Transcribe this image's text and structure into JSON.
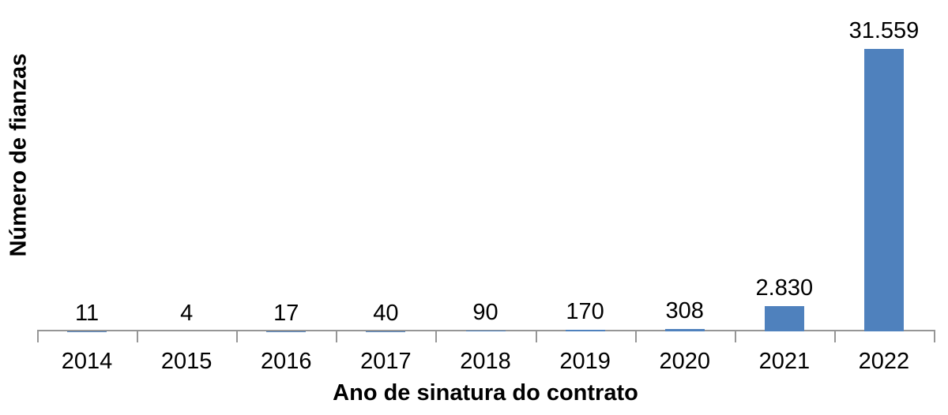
{
  "chart_data": {
    "type": "bar",
    "title": "",
    "xlabel": "Ano de sinatura do contrato",
    "ylabel": "Número de fianzas",
    "categories": [
      "2014",
      "2015",
      "2016",
      "2017",
      "2018",
      "2019",
      "2020",
      "2021",
      "2022"
    ],
    "values": [
      11,
      4,
      17,
      40,
      90,
      170,
      308,
      2830,
      31559
    ],
    "data_labels": [
      "11",
      "4",
      "17",
      "40",
      "90",
      "170",
      "308",
      "2.830",
      "31.559"
    ],
    "ylim": [
      0,
      31559
    ],
    "grid": "off",
    "legend": "none",
    "bar_color": "#4F81BD",
    "axis_color": "#969696",
    "text_color": "#000000"
  }
}
